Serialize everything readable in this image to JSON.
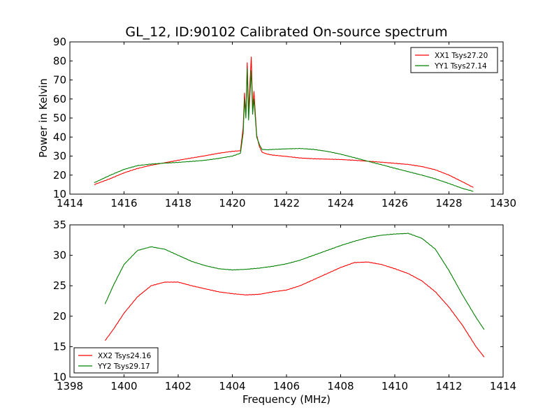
{
  "title": "GL_12, ID:90102 Calibrated On-source spectrum",
  "chart_data": [
    {
      "type": "line",
      "ylabel": "Power in Kelvin",
      "xlabel": "",
      "xlim": [
        1414,
        1430
      ],
      "ylim": [
        10,
        90
      ],
      "xticks": [
        1414,
        1416,
        1418,
        1420,
        1422,
        1424,
        1426,
        1428,
        1430
      ],
      "yticks": [
        10,
        20,
        30,
        40,
        50,
        60,
        70,
        80,
        90
      ],
      "legend_position": "top-right",
      "grid": false,
      "series": [
        {
          "name": "XX1 Tsys27.20",
          "color": "#ff0000",
          "x": [
            1414.9,
            1415.5,
            1416.0,
            1416.5,
            1417.0,
            1417.5,
            1418.0,
            1418.5,
            1419.0,
            1419.5,
            1420.0,
            1420.3,
            1420.4,
            1420.45,
            1420.5,
            1420.55,
            1420.6,
            1420.65,
            1420.7,
            1420.75,
            1420.8,
            1420.85,
            1420.9,
            1421.0,
            1421.1,
            1421.3,
            1421.5,
            1422.0,
            1422.5,
            1423.0,
            1423.5,
            1424.0,
            1424.5,
            1425.0,
            1425.5,
            1426.0,
            1426.5,
            1427.0,
            1427.5,
            1428.0,
            1428.5,
            1428.9
          ],
          "y": [
            15.0,
            18.2,
            21.2,
            23.5,
            25.2,
            26.5,
            27.8,
            29.0,
            30.2,
            31.5,
            32.5,
            32.8,
            45.0,
            63.0,
            51.0,
            79.0,
            53.0,
            68.0,
            82.0,
            55.0,
            64.0,
            52.0,
            41.0,
            35.0,
            32.0,
            31.0,
            30.5,
            29.8,
            29.0,
            28.6,
            28.4,
            28.2,
            27.8,
            27.3,
            26.8,
            26.2,
            25.6,
            24.5,
            22.8,
            20.0,
            16.5,
            13.5
          ]
        },
        {
          "name": "YY1 Tsys27.14",
          "color": "#008000",
          "x": [
            1414.9,
            1415.5,
            1416.0,
            1416.5,
            1417.0,
            1417.5,
            1418.0,
            1418.5,
            1419.0,
            1419.5,
            1420.0,
            1420.3,
            1420.4,
            1420.45,
            1420.5,
            1420.55,
            1420.6,
            1420.65,
            1420.7,
            1420.75,
            1420.8,
            1420.85,
            1420.9,
            1421.0,
            1421.1,
            1421.3,
            1421.5,
            1422.0,
            1422.5,
            1423.0,
            1423.5,
            1424.0,
            1424.5,
            1425.0,
            1425.5,
            1426.0,
            1426.5,
            1427.0,
            1427.5,
            1428.0,
            1428.5,
            1428.9
          ],
          "y": [
            16.0,
            20.0,
            23.0,
            25.0,
            25.8,
            26.3,
            26.7,
            27.2,
            27.8,
            28.8,
            30.0,
            31.5,
            42.0,
            60.0,
            50.0,
            76.0,
            49.0,
            62.0,
            75.0,
            52.0,
            60.0,
            50.0,
            40.0,
            36.0,
            33.5,
            33.3,
            33.5,
            33.8,
            34.0,
            33.5,
            32.5,
            31.0,
            29.2,
            27.3,
            25.5,
            23.6,
            21.8,
            20.0,
            18.0,
            15.6,
            13.0,
            11.5
          ]
        }
      ]
    },
    {
      "type": "line",
      "ylabel": "",
      "xlabel": "Frequency (MHz)",
      "xlim": [
        1398,
        1414
      ],
      "ylim": [
        10,
        35
      ],
      "xticks": [
        1398,
        1400,
        1402,
        1404,
        1406,
        1408,
        1410,
        1412,
        1414
      ],
      "yticks": [
        10,
        15,
        20,
        25,
        30,
        35
      ],
      "legend_position": "bottom-left",
      "grid": false,
      "series": [
        {
          "name": "XX2 Tsys24.16",
          "color": "#ff0000",
          "x": [
            1399.3,
            1399.6,
            1400.0,
            1400.5,
            1401.0,
            1401.5,
            1402.0,
            1402.5,
            1403.0,
            1403.5,
            1404.0,
            1404.5,
            1405.0,
            1405.5,
            1406.0,
            1406.5,
            1407.0,
            1407.5,
            1408.0,
            1408.5,
            1409.0,
            1409.5,
            1410.0,
            1410.5,
            1411.0,
            1411.5,
            1412.0,
            1412.5,
            1413.0,
            1413.3
          ],
          "y": [
            16.0,
            17.8,
            20.5,
            23.2,
            25.0,
            25.6,
            25.6,
            25.0,
            24.5,
            24.0,
            23.7,
            23.5,
            23.6,
            24.0,
            24.3,
            25.0,
            26.0,
            27.0,
            28.0,
            28.8,
            28.9,
            28.5,
            27.8,
            27.0,
            25.8,
            24.0,
            21.5,
            18.5,
            15.0,
            13.3
          ]
        },
        {
          "name": "YY2 Tsys29.17",
          "color": "#008000",
          "x": [
            1399.3,
            1399.6,
            1400.0,
            1400.5,
            1401.0,
            1401.5,
            1402.0,
            1402.5,
            1403.0,
            1403.5,
            1404.0,
            1404.5,
            1405.0,
            1405.5,
            1406.0,
            1406.5,
            1407.0,
            1407.5,
            1408.0,
            1408.5,
            1409.0,
            1409.5,
            1410.0,
            1410.5,
            1411.0,
            1411.5,
            1412.0,
            1412.5,
            1413.0,
            1413.3
          ],
          "y": [
            22.0,
            25.0,
            28.5,
            30.8,
            31.4,
            31.0,
            30.0,
            29.0,
            28.3,
            27.8,
            27.6,
            27.7,
            27.9,
            28.2,
            28.6,
            29.2,
            30.0,
            30.8,
            31.6,
            32.3,
            32.9,
            33.3,
            33.5,
            33.6,
            32.8,
            31.0,
            27.5,
            23.5,
            19.8,
            17.8
          ]
        }
      ]
    }
  ]
}
